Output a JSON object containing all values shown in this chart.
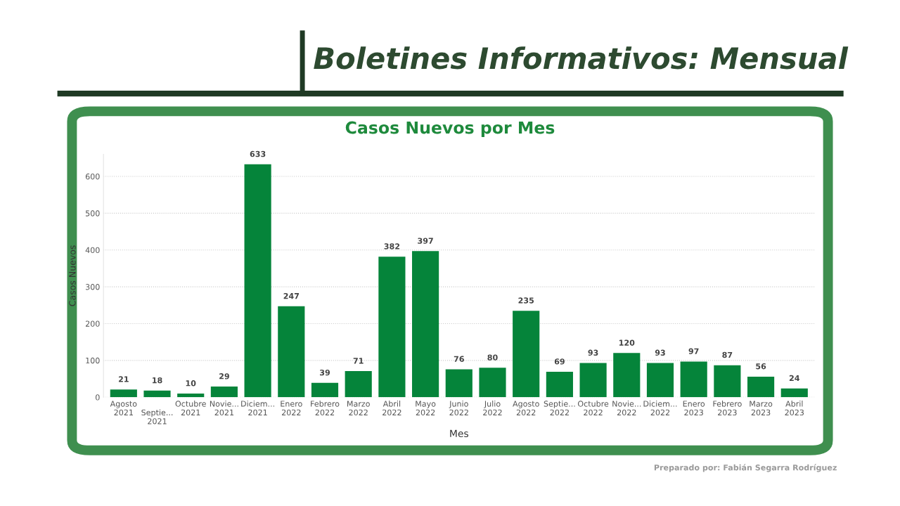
{
  "chart_data": {
    "type": "bar",
    "title": "Casos Nuevos por Mes",
    "xlabel": "Mes",
    "ylabel": "Casos Nuevos",
    "annotations": [
      "Boletines Informativos: Mensual",
      "Preparado por: Fabián Segarra Rodríguez"
    ],
    "categories": [
      "Agosto\n2021",
      "\nSeptie...\n2021",
      "Octubre\n2021",
      "Novie...\n2021",
      "Diciem...\n2021",
      "Enero\n2022",
      "Febrero\n2022",
      "Marzo\n2022",
      "Abril\n2022",
      "Mayo\n2022",
      "Junio\n2022",
      "Julio\n2022",
      "Agosto\n2022",
      "Septie...\n2022",
      "Octubre\n2022",
      "Novie...\n2022",
      "Diciem...\n2022",
      "Enero\n2023",
      "Febrero\n2023",
      "Marzo\n2023",
      "Abril\n2023"
    ],
    "values": [
      21,
      18,
      10,
      29,
      633,
      247,
      39,
      71,
      382,
      397,
      76,
      80,
      235,
      69,
      93,
      120,
      93,
      97,
      87,
      56,
      24
    ],
    "color": "#05843a",
    "ylim": [
      0,
      660
    ],
    "yticks": [
      0,
      100,
      200,
      300,
      400,
      500,
      600
    ],
    "grid": "y",
    "data_labels": true
  }
}
